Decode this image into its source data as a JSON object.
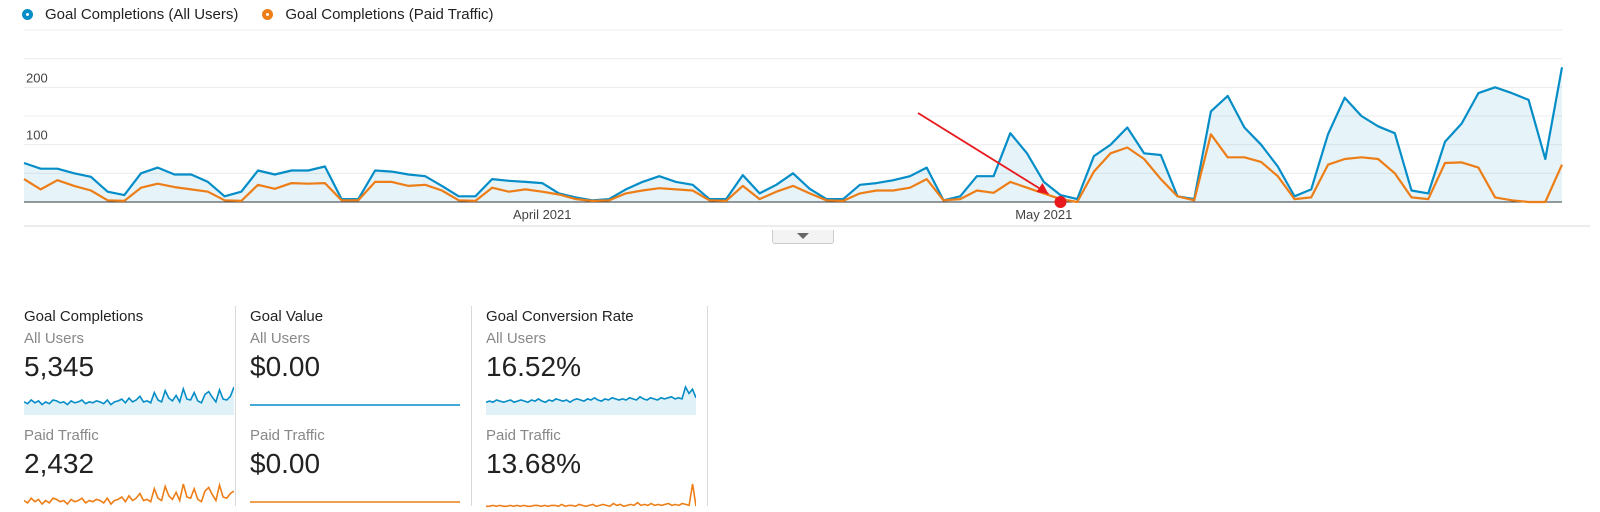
{
  "legend": {
    "items": [
      {
        "label": "Goal Completions (All Users)",
        "color": "#058dc7"
      },
      {
        "label": "Goal Completions (Paid Traffic)",
        "color": "#ed7e17"
      }
    ]
  },
  "chart_data": {
    "type": "line",
    "y_ticks": [
      "300",
      "200",
      "100"
    ],
    "ylim": [
      0,
      300
    ],
    "x_labels": [
      {
        "label": "April 2021",
        "index": 31
      },
      {
        "label": "May 2021",
        "index": 61
      }
    ],
    "series": [
      {
        "name": "Goal Completions (All Users)",
        "color": "#058dc7",
        "fill": true,
        "values": [
          68,
          58,
          58,
          50,
          44,
          18,
          12,
          50,
          60,
          48,
          48,
          35,
          10,
          18,
          55,
          48,
          55,
          55,
          62,
          5,
          5,
          55,
          53,
          48,
          45,
          28,
          10,
          10,
          40,
          37,
          35,
          33,
          15,
          8,
          3,
          5,
          22,
          35,
          45,
          35,
          30,
          5,
          5,
          47,
          15,
          30,
          50,
          23,
          5,
          5,
          30,
          33,
          38,
          45,
          60,
          3,
          10,
          45,
          45,
          120,
          85,
          35,
          12,
          5,
          80,
          100,
          130,
          85,
          82,
          10,
          5,
          158,
          185,
          130,
          100,
          62,
          10,
          22,
          118,
          182,
          150,
          132,
          120,
          20,
          15,
          105,
          137,
          190,
          200,
          190,
          178,
          75,
          235
        ]
      },
      {
        "name": "Goal Completions (Paid Traffic)",
        "color": "#ed7e17",
        "fill": false,
        "values": [
          40,
          22,
          38,
          28,
          20,
          3,
          2,
          25,
          32,
          26,
          22,
          18,
          3,
          2,
          30,
          23,
          33,
          32,
          33,
          3,
          3,
          35,
          35,
          28,
          30,
          20,
          3,
          2,
          25,
          18,
          22,
          18,
          13,
          5,
          2,
          3,
          15,
          20,
          24,
          22,
          20,
          3,
          2,
          28,
          5,
          18,
          28,
          15,
          3,
          2,
          15,
          20,
          20,
          25,
          40,
          3,
          5,
          20,
          16,
          35,
          25,
          15,
          5,
          0,
          53,
          85,
          95,
          75,
          40,
          10,
          3,
          118,
          78,
          78,
          70,
          45,
          5,
          8,
          65,
          75,
          78,
          75,
          50,
          8,
          5,
          68,
          69,
          60,
          8,
          3,
          0,
          0,
          65
        ]
      }
    ],
    "annotation": {
      "type": "arrow",
      "color": "#e8191c",
      "target_index": 62,
      "target_value": 0
    }
  },
  "metrics": [
    {
      "title": "Goal Completions",
      "segments": [
        {
          "label": "All Users",
          "value": "5,345",
          "color": "#058dc7",
          "fill": true,
          "spark": [
            12,
            10,
            14,
            11,
            13,
            9,
            12,
            10,
            14,
            13,
            11,
            12,
            9,
            13,
            11,
            12,
            14,
            10,
            12,
            11,
            13,
            12,
            10,
            14,
            9,
            12,
            13,
            15,
            11,
            16,
            12,
            14,
            18,
            12,
            13,
            11,
            22,
            14,
            12,
            24,
            16,
            13,
            19,
            12,
            26,
            15,
            14,
            22,
            13,
            11,
            20,
            23,
            17,
            12,
            25,
            15,
            14,
            18,
            28
          ]
        },
        {
          "label": "Paid Traffic",
          "value": "2,432",
          "color": "#ed7e17",
          "fill": false,
          "spark": [
            8,
            6,
            10,
            7,
            9,
            5,
            8,
            6,
            10,
            9,
            7,
            8,
            5,
            9,
            7,
            8,
            10,
            6,
            8,
            7,
            9,
            8,
            6,
            10,
            5,
            8,
            9,
            11,
            7,
            12,
            8,
            10,
            14,
            8,
            9,
            7,
            18,
            10,
            8,
            20,
            12,
            9,
            15,
            8,
            22,
            11,
            10,
            18,
            9,
            7,
            16,
            19,
            13,
            8,
            21,
            11,
            10,
            14,
            16
          ]
        }
      ]
    },
    {
      "title": "Goal Value",
      "segments": [
        {
          "label": "All Users",
          "value": "$0.00",
          "color": "#058dc7",
          "fill": false,
          "spark": [
            0,
            0
          ]
        },
        {
          "label": "Paid Traffic",
          "value": "$0.00",
          "color": "#ed7e17",
          "fill": false,
          "spark": [
            0,
            0
          ]
        }
      ]
    },
    {
      "title": "Goal Conversion Rate",
      "segments": [
        {
          "label": "All Users",
          "value": "16.52%",
          "color": "#058dc7",
          "fill": true,
          "spark": [
            10,
            11,
            10,
            12,
            11,
            10,
            11,
            12,
            10,
            11,
            12,
            11,
            10,
            12,
            11,
            13,
            11,
            10,
            12,
            11,
            13,
            12,
            11,
            12,
            10,
            12,
            13,
            12,
            11,
            13,
            12,
            14,
            12,
            11,
            13,
            12,
            14,
            13,
            12,
            13,
            12,
            14,
            13,
            12,
            15,
            13,
            12,
            14,
            13,
            12,
            14,
            13,
            14,
            15,
            13,
            14,
            13,
            24,
            18,
            22,
            14
          ]
        },
        {
          "label": "Paid Traffic",
          "value": "13.68%",
          "color": "#ed7e17",
          "fill": false,
          "spark": [
            4,
            4,
            5,
            4,
            5,
            4,
            4,
            5,
            4,
            5,
            4,
            5,
            4,
            4,
            5,
            5,
            4,
            5,
            4,
            5,
            5,
            4,
            6,
            4,
            5,
            5,
            4,
            6,
            5,
            4,
            5,
            6,
            4,
            5,
            6,
            5,
            4,
            7,
            5,
            6,
            4,
            5,
            6,
            5,
            8,
            5,
            6,
            5,
            7,
            5,
            6,
            5,
            6,
            7,
            5,
            6,
            5,
            7,
            6,
            5,
            28,
            4
          ]
        }
      ]
    }
  ]
}
